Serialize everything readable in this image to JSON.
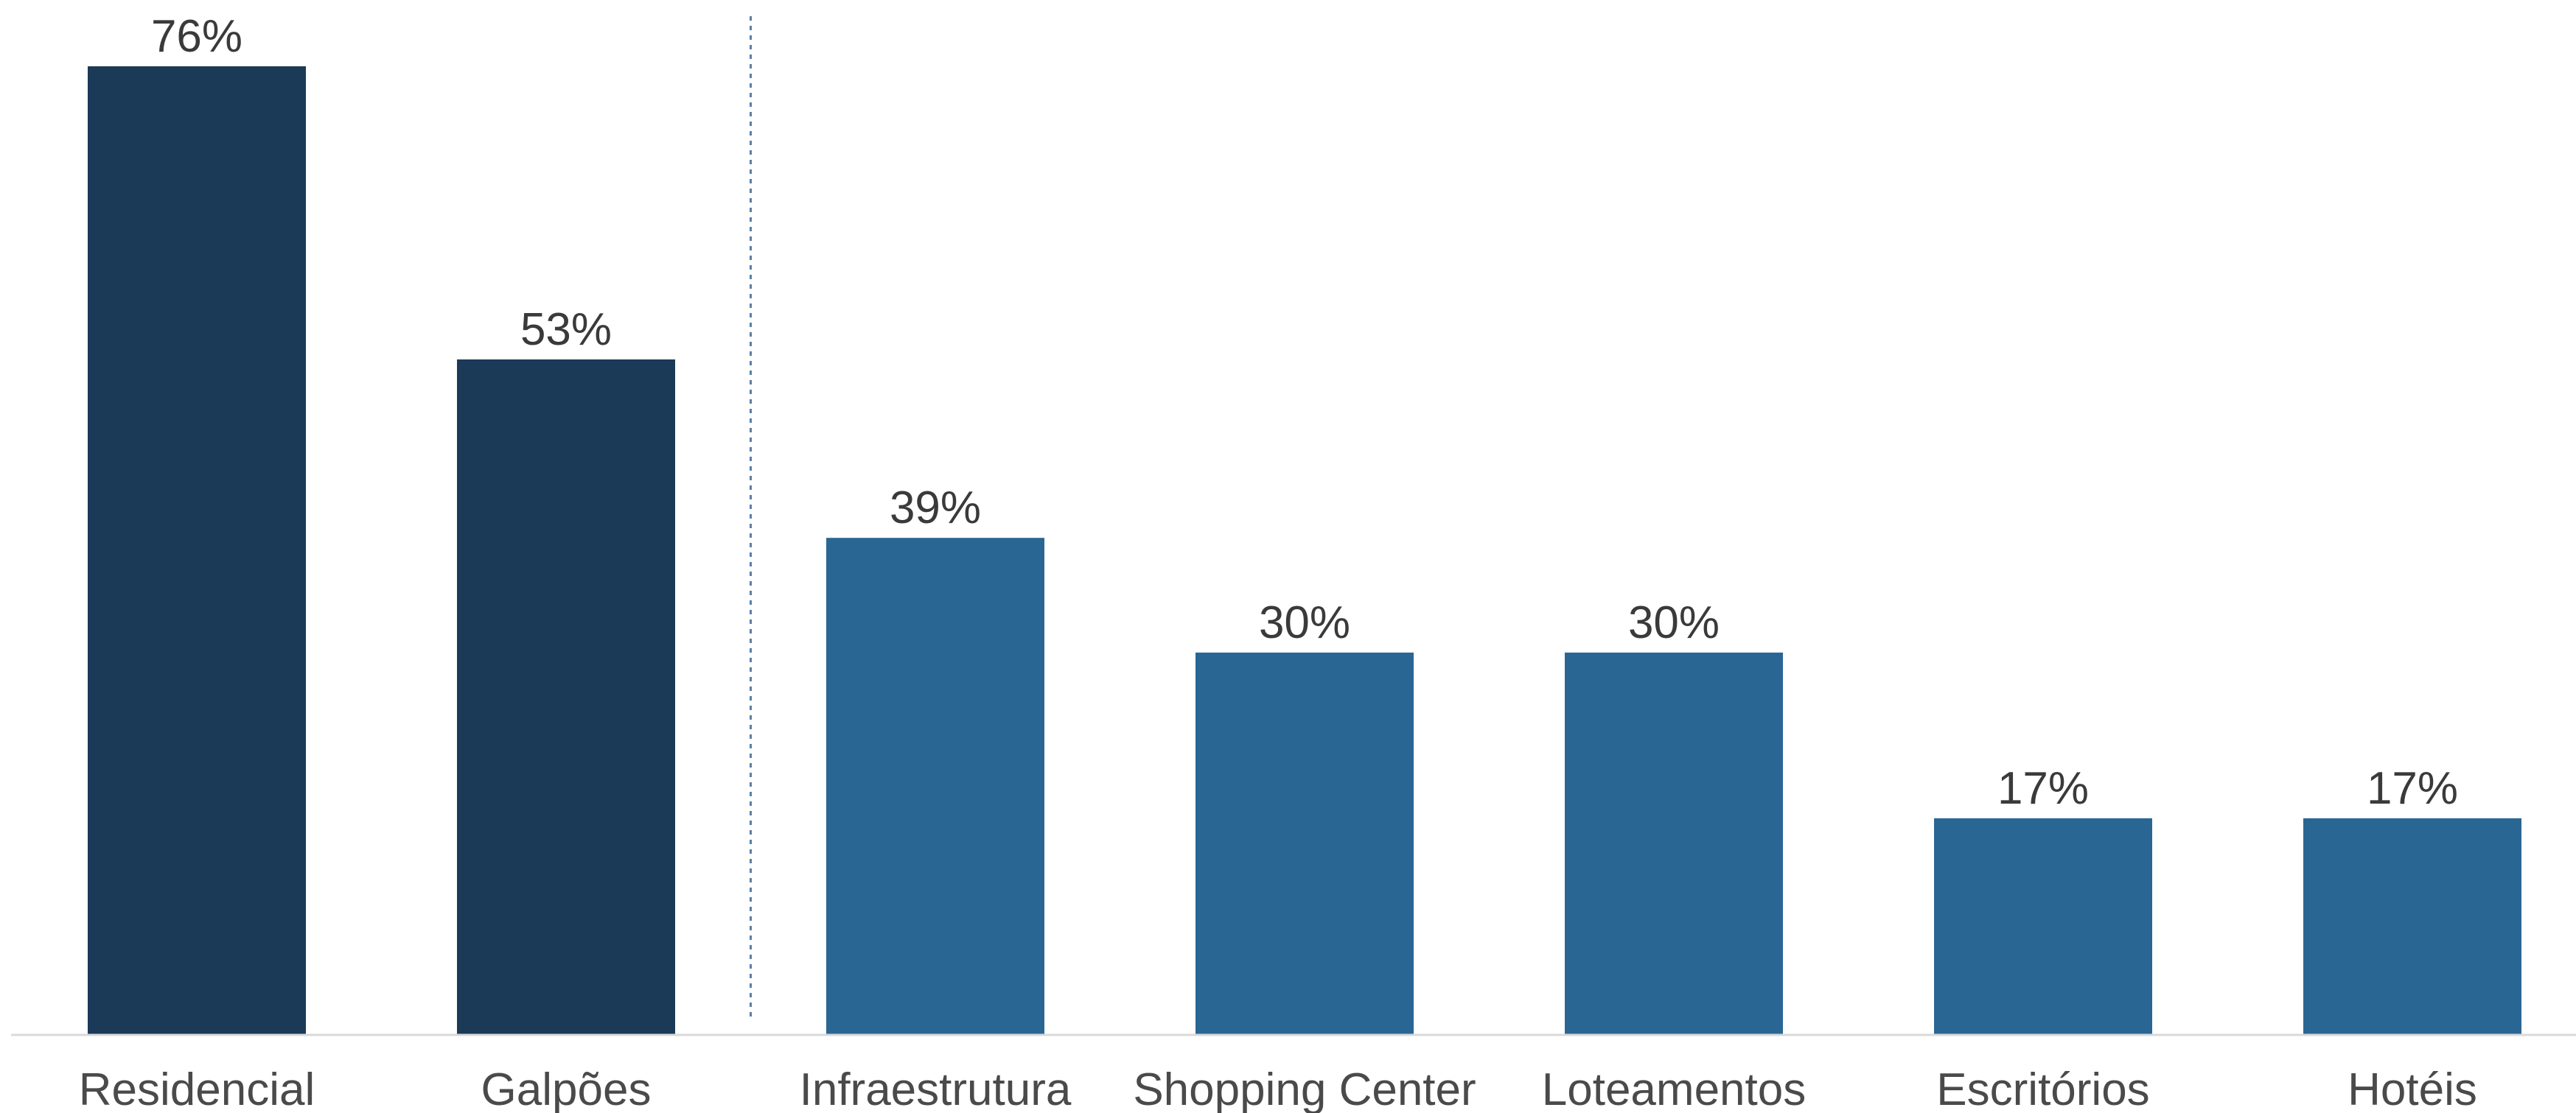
{
  "chart_data": {
    "type": "bar",
    "title": "",
    "xlabel": "",
    "ylabel": "",
    "categories": [
      "Residencial",
      "Galpões",
      "Infraestrutura",
      "Shopping Center",
      "Loteamentos",
      "Escritórios",
      "Hotéis"
    ],
    "values": [
      76,
      53,
      39,
      30,
      30,
      17,
      17
    ],
    "value_labels": [
      "76%",
      "53%",
      "39%",
      "30%",
      "30%",
      "17%",
      "17%"
    ],
    "unit": "%",
    "ylim": [
      0,
      76
    ],
    "grid": false,
    "legend": "none",
    "separator_after_category_index": 1,
    "colors": {
      "highlight": "#1a3a57",
      "default": "#2a6694",
      "baseline": "#d9d9d9",
      "separator": "#5b7fa6",
      "value_text": "#3a3a3a",
      "category_text": "#4a4a4a"
    },
    "bar_color_groups": [
      "highlight",
      "highlight",
      "default",
      "default",
      "default",
      "default",
      "default"
    ]
  }
}
